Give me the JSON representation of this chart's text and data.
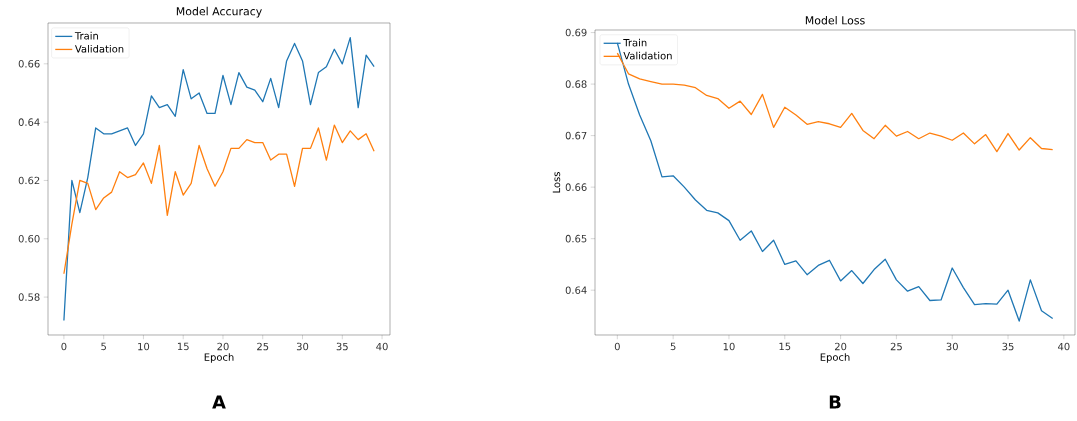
{
  "chart_data": [
    {
      "type": "line",
      "title": "Model Accuracy",
      "xlabel": "Epoch",
      "annotations": [
        "A"
      ],
      "legend": "top left",
      "line_style": "solid",
      "x": [
        0,
        1,
        2,
        3,
        4,
        5,
        6,
        7,
        8,
        9,
        10,
        11,
        12,
        13,
        14,
        15,
        16,
        17,
        18,
        19,
        20,
        21,
        22,
        23,
        24,
        25,
        26,
        27,
        28,
        29,
        30,
        31,
        32,
        33,
        34,
        35,
        36,
        37,
        38,
        39
      ],
      "xlim": [
        -2,
        41
      ],
      "xticks": [
        0,
        5,
        10,
        15,
        20,
        25,
        30,
        35,
        40
      ],
      "ylim": [
        0.567,
        0.674
      ],
      "yticks": [
        {
          "value": 0.58,
          "label": "0.58"
        },
        {
          "value": 0.6,
          "label": "0.60"
        },
        {
          "value": 0.62,
          "label": "0.62"
        },
        {
          "value": 0.64,
          "label": "0.64"
        },
        {
          "value": 0.66,
          "label": "0.66"
        }
      ],
      "series": [
        {
          "name": "Train",
          "color": "#1f77b4",
          "values": [
            0.572,
            0.62,
            0.609,
            0.621,
            0.638,
            0.636,
            0.636,
            0.637,
            0.638,
            0.632,
            0.636,
            0.649,
            0.645,
            0.646,
            0.642,
            0.658,
            0.648,
            0.65,
            0.643,
            0.643,
            0.656,
            0.646,
            0.657,
            0.652,
            0.651,
            0.647,
            0.655,
            0.645,
            0.661,
            0.667,
            0.661,
            0.646,
            0.657,
            0.659,
            0.665,
            0.66,
            0.669,
            0.645,
            0.663,
            0.659
          ]
        },
        {
          "name": "Validation",
          "color": "#ff7f0e",
          "values": [
            0.588,
            0.605,
            0.62,
            0.619,
            0.61,
            0.614,
            0.616,
            0.623,
            0.621,
            0.622,
            0.626,
            0.619,
            0.632,
            0.608,
            0.623,
            0.615,
            0.619,
            0.632,
            0.624,
            0.618,
            0.623,
            0.631,
            0.631,
            0.634,
            0.633,
            0.633,
            0.627,
            0.629,
            0.629,
            0.618,
            0.631,
            0.631,
            0.638,
            0.627,
            0.639,
            0.633,
            0.637,
            0.634,
            0.636,
            0.63
          ]
        }
      ]
    },
    {
      "type": "line",
      "title": "Model Loss",
      "xlabel": "Epoch",
      "ylabel": "Loss",
      "annotations": [
        "B"
      ],
      "legend": "top left",
      "line_style": "solid",
      "x": [
        0,
        1,
        2,
        3,
        4,
        5,
        6,
        7,
        8,
        9,
        10,
        11,
        12,
        13,
        14,
        15,
        16,
        17,
        18,
        19,
        20,
        21,
        22,
        23,
        24,
        25,
        26,
        27,
        28,
        29,
        30,
        31,
        32,
        33,
        34,
        35,
        36,
        37,
        38,
        39
      ],
      "xlim": [
        -2,
        41
      ],
      "xticks": [
        0,
        5,
        10,
        15,
        20,
        25,
        30,
        35,
        40
      ],
      "ylim": [
        0.6313,
        0.6905
      ],
      "yticks": [
        0.64,
        0.65,
        0.66,
        0.67,
        0.68,
        0.69
      ],
      "series": [
        {
          "name": "Train",
          "color": "#1f77b4",
          "values": [
            0.688,
            0.68,
            0.674,
            0.669,
            0.662,
            0.6622,
            0.66,
            0.6575,
            0.6555,
            0.655,
            0.6535,
            0.6497,
            0.6515,
            0.6475,
            0.6497,
            0.645,
            0.6457,
            0.643,
            0.6448,
            0.6458,
            0.6418,
            0.6438,
            0.6413,
            0.644,
            0.646,
            0.642,
            0.6398,
            0.6407,
            0.638,
            0.6381,
            0.6443,
            0.6405,
            0.6372,
            0.6374,
            0.6373,
            0.64,
            0.634,
            0.642,
            0.636,
            0.6345
          ]
        },
        {
          "name": "Validation",
          "color": "#ff7f0e",
          "values": [
            0.686,
            0.682,
            0.681,
            0.6805,
            0.68,
            0.68,
            0.6798,
            0.6793,
            0.6778,
            0.6772,
            0.6753,
            0.6767,
            0.6741,
            0.678,
            0.6716,
            0.6755,
            0.674,
            0.6722,
            0.6727,
            0.6723,
            0.6716,
            0.6743,
            0.671,
            0.6694,
            0.672,
            0.6699,
            0.6708,
            0.6694,
            0.6705,
            0.6699,
            0.6691,
            0.6705,
            0.6684,
            0.6702,
            0.6669,
            0.6704,
            0.6672,
            0.6696,
            0.6675,
            0.6673
          ]
        }
      ]
    }
  ]
}
